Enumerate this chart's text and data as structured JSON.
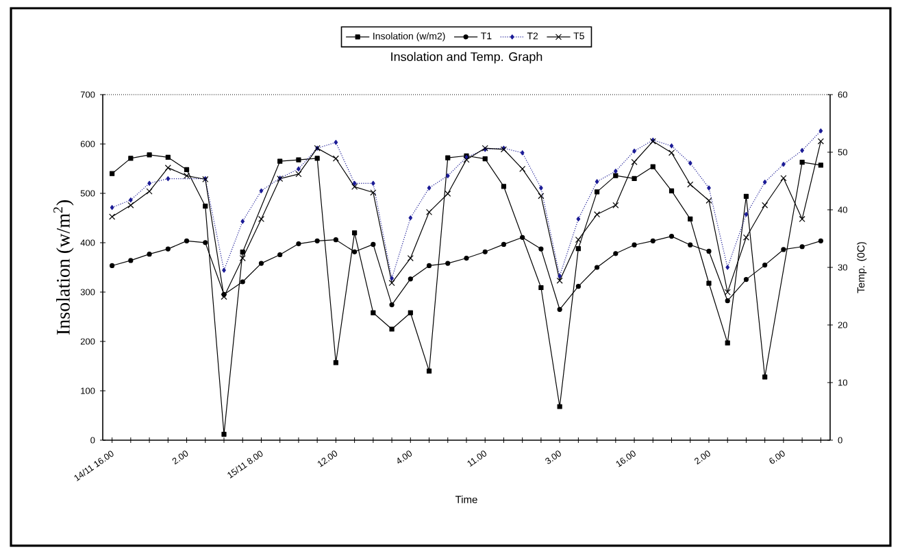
{
  "chart_data": {
    "type": "line",
    "title": "Insolation and Temp. Graph",
    "xlabel": "Time",
    "ylabel": "Insolation (w/m$^{2}$)",
    "y2label": "Temp. (0C)",
    "categories": [
      "14/11 16.00",
      null,
      null,
      null,
      "2.00",
      null,
      null,
      null,
      "15/11 8.00",
      null,
      null,
      null,
      "12.00",
      null,
      null,
      null,
      "4.00",
      null,
      null,
      null,
      "11.00",
      null,
      null,
      null,
      "3.00",
      null,
      null,
      null,
      "16.00",
      null,
      null,
      null,
      "2.00",
      null,
      null,
      null,
      "6.00",
      null,
      null
    ],
    "ylim": [
      0,
      700
    ],
    "yticks": [
      0,
      100,
      200,
      300,
      400,
      500,
      600,
      700
    ],
    "y2lim": [
      0,
      60
    ],
    "y2ticks": [
      0,
      10,
      20,
      30,
      40,
      50,
      60
    ],
    "legend": "top",
    "series": [
      {
        "name": "Insolation (w/m2)",
        "color": "#000000",
        "marker": "square",
        "line_style": "solid",
        "values": [
          540,
          571,
          578,
          573,
          548,
          474,
          12,
          381,
          null,
          565,
          568,
          571,
          157,
          420,
          258,
          225,
          258,
          140,
          572,
          576,
          570,
          514,
          null,
          309,
          68,
          388,
          503,
          536,
          530,
          554,
          505,
          448,
          318,
          197,
          494,
          128,
          null,
          563,
          557
        ]
      },
      {
        "name": "T1",
        "color": "#000000",
        "marker": "circle",
        "line_style": "solid",
        "axis": "y2",
        "values": [
          30.3,
          31.2,
          32.3,
          33.2,
          34.6,
          34.3,
          25.3,
          27.5,
          30.7,
          32.2,
          34.1,
          34.6,
          34.8,
          32.7,
          34.0,
          23.5,
          28.0,
          30.3,
          30.7,
          31.6,
          32.7,
          34.0,
          35.2,
          33.2,
          22.7,
          26.7,
          30.0,
          32.4,
          33.9,
          34.6,
          35.4,
          33.9,
          32.8,
          24.2,
          27.9,
          30.4,
          33.1,
          33.6,
          34.6
        ]
      },
      {
        "name": "T2",
        "color": "#1c1c96",
        "marker": "diamond",
        "line_style": "dotted",
        "axis": "y2",
        "values": [
          40.4,
          41.7,
          44.6,
          45.4,
          null,
          45.4,
          29.5,
          38.0,
          43.3,
          45.5,
          47.1,
          50.7,
          51.7,
          44.6,
          44.6,
          28.1,
          38.6,
          43.8,
          45.9,
          49.1,
          50.5,
          50.7,
          49.9,
          43.8,
          28.5,
          38.4,
          44.9,
          46.7,
          50.2,
          52.1,
          51.1,
          48.1,
          43.8,
          30.0,
          39.2,
          44.8,
          47.9,
          50.3,
          53.7
        ]
      },
      {
        "name": "T5",
        "color": "#000000",
        "marker": "cross",
        "line_style": "solid",
        "axis": "y2",
        "values": [
          38.8,
          40.8,
          43.2,
          47.3,
          45.9,
          45.3,
          24.9,
          31.6,
          38.4,
          45.4,
          46.2,
          50.7,
          48.9,
          44.0,
          43.0,
          27.3,
          31.6,
          39.6,
          42.8,
          48.7,
          50.7,
          50.5,
          47.1,
          42.4,
          27.7,
          34.8,
          39.2,
          40.8,
          48.3,
          51.9,
          49.9,
          44.4,
          41.6,
          25.7,
          35.2,
          40.8,
          45.5,
          38.4,
          51.9
        ]
      }
    ]
  }
}
